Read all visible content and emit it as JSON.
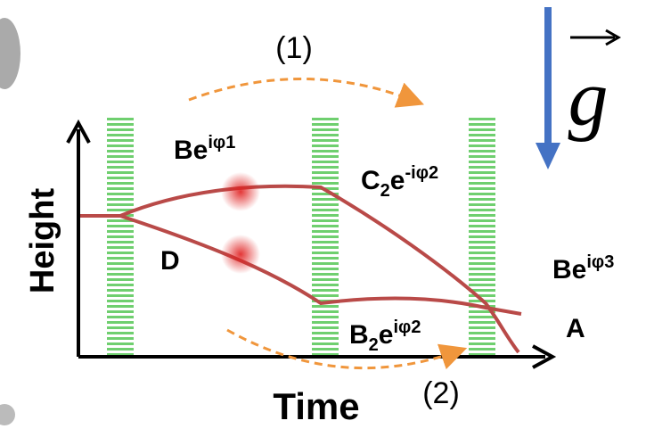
{
  "axes": {
    "y_label": "Height",
    "x_label": "Time"
  },
  "arrows": {
    "top": "(1)",
    "bottom": "(2)"
  },
  "gravity": "g",
  "labels": {
    "upper_path": {
      "base": "Be",
      "sup": "iφ1"
    },
    "upper_second": {
      "base": "C",
      "sub": "2",
      "mid": "e",
      "sup": "-iφ2"
    },
    "lower_path": "D",
    "lower_second": {
      "base": "B",
      "sub": "2",
      "mid": "e",
      "sup": "iφ2"
    },
    "output_upper": {
      "base": "Be",
      "sup": "iφ3"
    },
    "output_lower": "A"
  }
}
